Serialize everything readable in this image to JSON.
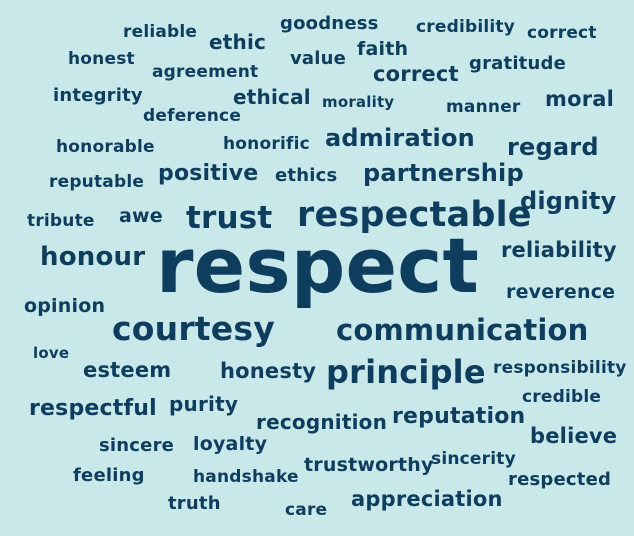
{
  "text_color": "#0e3d5e",
  "background": "#c9e8ea",
  "words": [
    "reliable",
    "ethic",
    "goodness",
    "credibility",
    "correct",
    "honest",
    "value",
    "faith",
    "agreement",
    "correct",
    "gratitude",
    "integrity",
    "ethical",
    "morality",
    "manner",
    "moral",
    "deference",
    "admiration",
    "honorable",
    "honorific",
    "regard",
    "reputable",
    "positive",
    "ethics",
    "partnership",
    "dignity",
    "tribute",
    "awe",
    "trust",
    "respectable",
    "reliability",
    "honour",
    "respect",
    "reverence",
    "opinion",
    "courtesy",
    "communication",
    "love",
    "esteem",
    "honesty",
    "principle",
    "responsibility",
    "respectful",
    "purity",
    "credible",
    "recognition",
    "reputation",
    "sincere",
    "loyalty",
    "believe",
    "sincerity",
    "feeling",
    "handshake",
    "trustworthy",
    "respected",
    "truth",
    "care",
    "appreciation"
  ]
}
